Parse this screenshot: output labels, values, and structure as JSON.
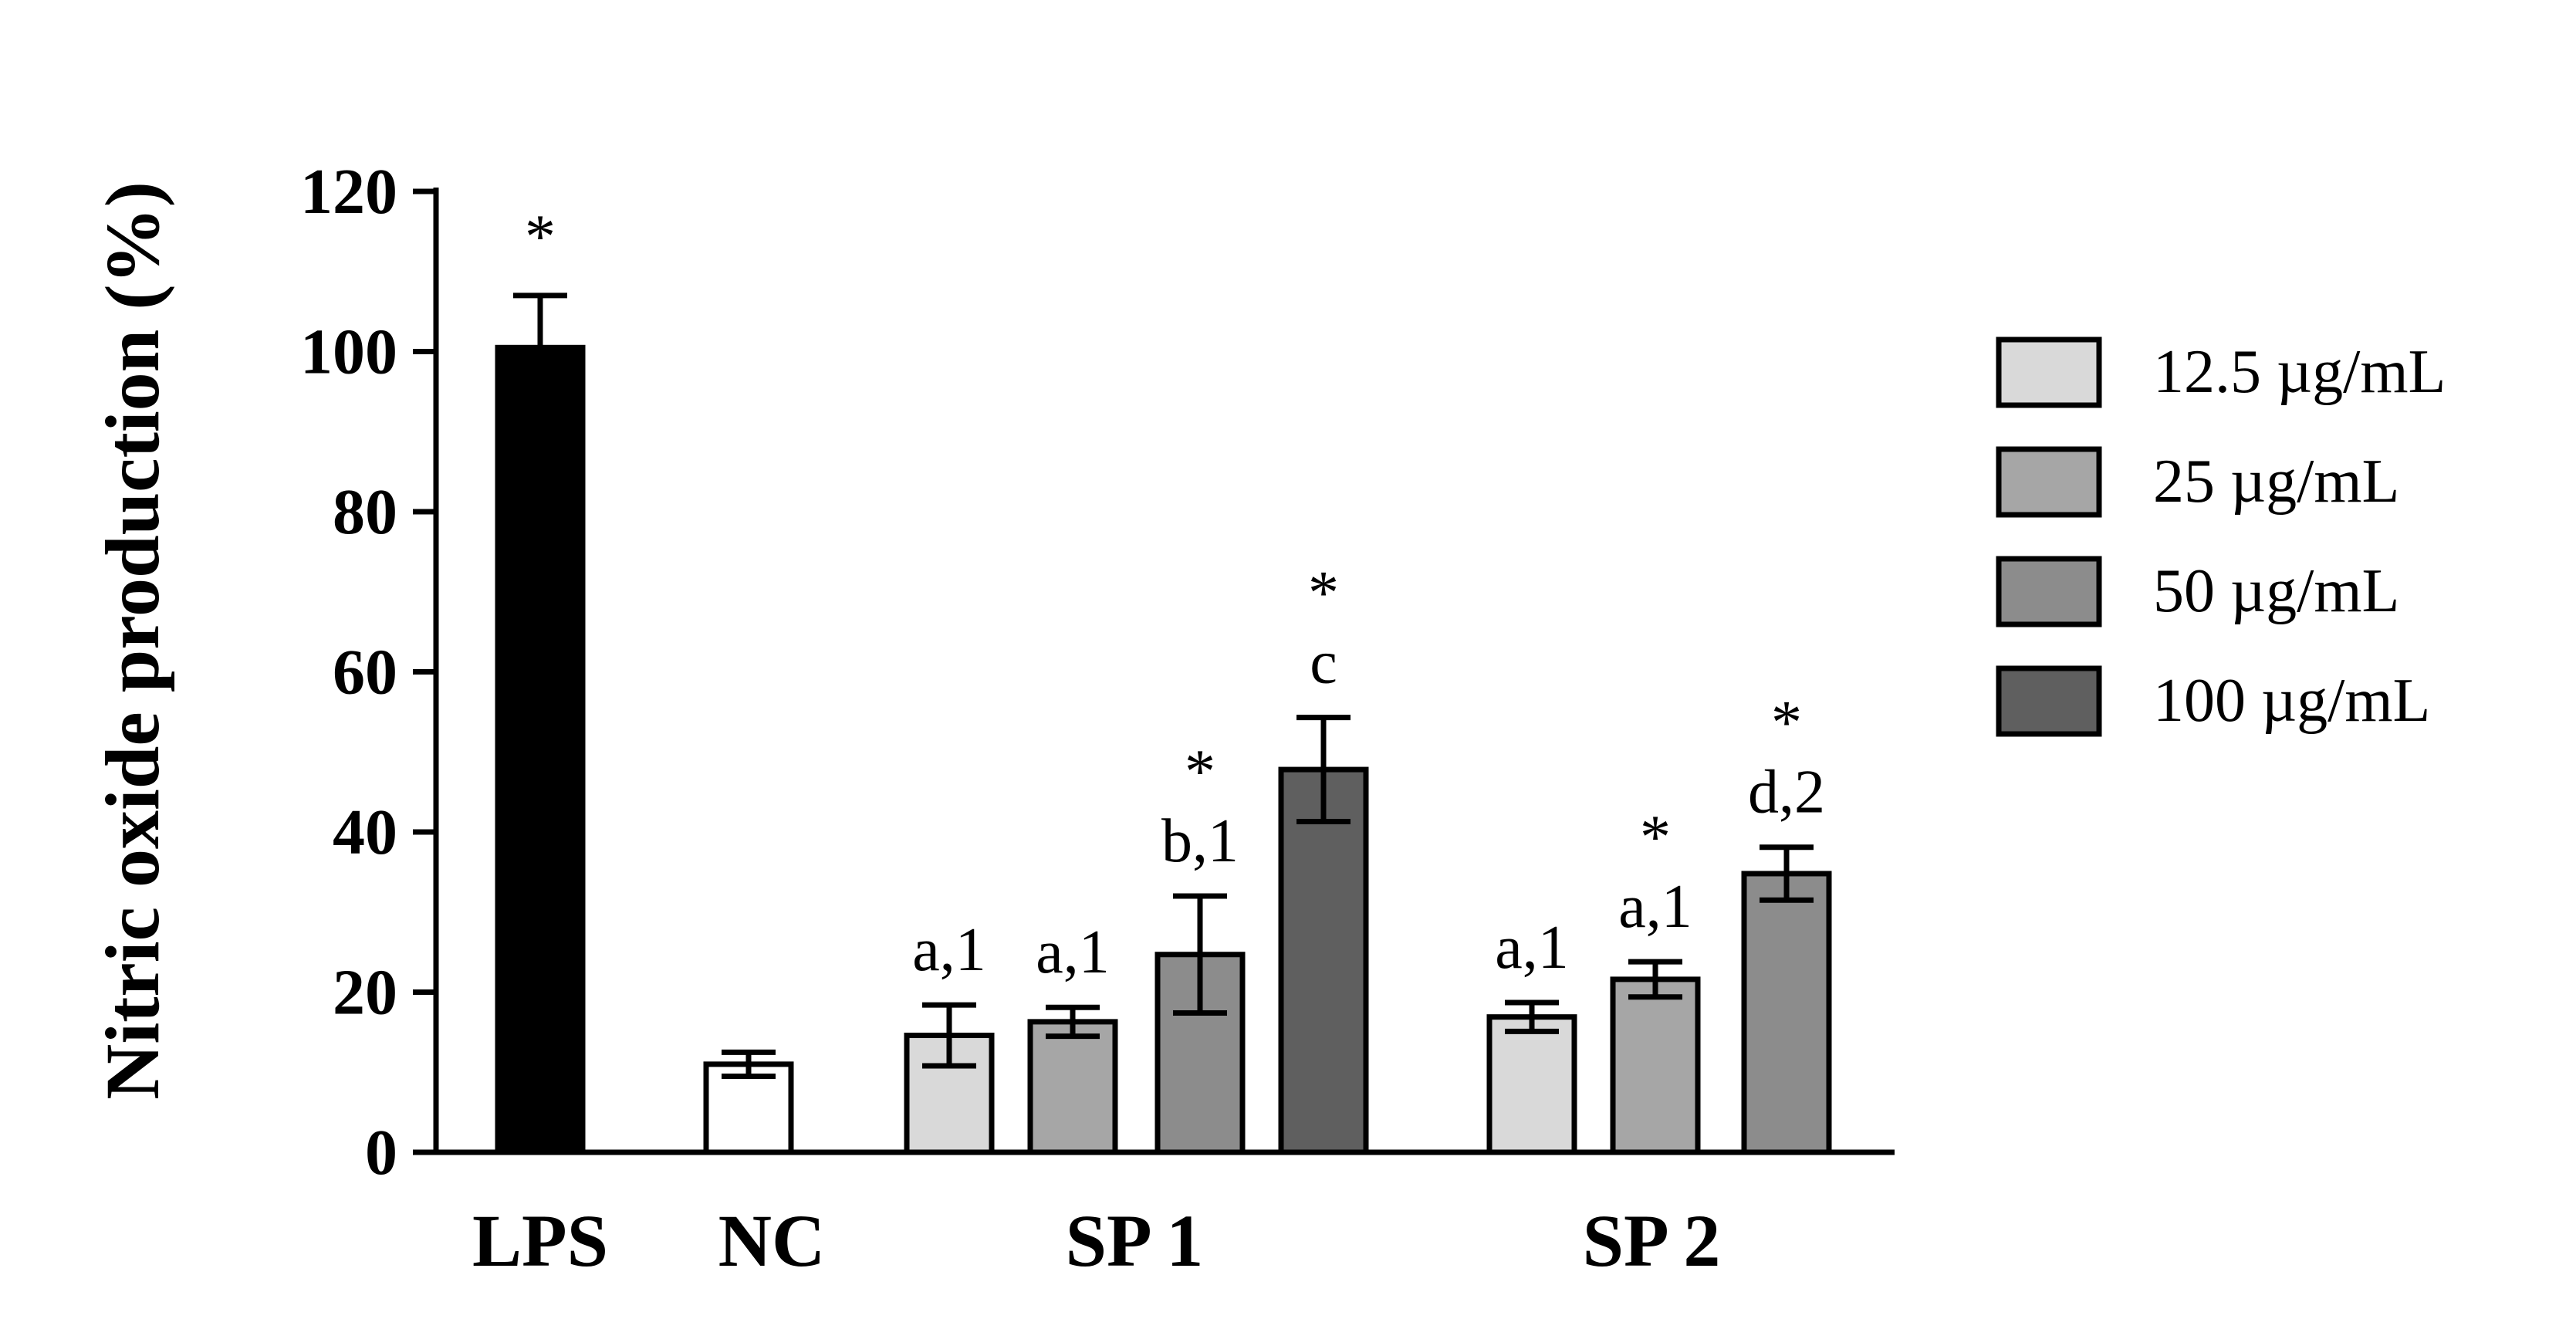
{
  "chart_data": {
    "type": "bar",
    "title": "",
    "ylabel": "Nitric oxide production (%)",
    "xlabel": "",
    "ylim": [
      0,
      120
    ],
    "yticks": [
      "0",
      "20",
      "40",
      "60",
      "80",
      "100",
      "120"
    ],
    "grid": false,
    "legend_position": "right",
    "groups": [
      {
        "label": "LPS",
        "bars": [
          {
            "series": "control",
            "value": 100.5,
            "error": 6.5,
            "color": "#000000",
            "annotation": "",
            "star": true
          }
        ]
      },
      {
        "label": "NC",
        "bars": [
          {
            "series": "control",
            "value": 11,
            "error": 1.5,
            "color": "#ffffff",
            "annotation": "",
            "star": false
          }
        ]
      },
      {
        "label": "SP 1",
        "bars": [
          {
            "series": "12.5 µg/mL",
            "value": 14.6,
            "error": 3.8,
            "color": "#d9d9d9",
            "annotation": "a,1",
            "star": false
          },
          {
            "series": "25 µg/mL",
            "value": 16.3,
            "error": 1.8,
            "color": "#a6a6a6",
            "annotation": "a,1",
            "star": false
          },
          {
            "series": "50 µg/mL",
            "value": 24.7,
            "error": 7.3,
            "color": "#8c8c8c",
            "annotation": "b,1",
            "star": true
          },
          {
            "series": "100 µg/mL",
            "value": 47.8,
            "error": 6.5,
            "color": "#5f5f5f",
            "annotation": "c",
            "star": true
          }
        ]
      },
      {
        "label": "SP 2",
        "bars": [
          {
            "series": "12.5 µg/mL",
            "value": 16.9,
            "error": 1.8,
            "color": "#d9d9d9",
            "annotation": "a,1",
            "star": false
          },
          {
            "series": "25 µg/mL",
            "value": 21.6,
            "error": 2.2,
            "color": "#a6a6a6",
            "annotation": "a,1",
            "star": true
          },
          {
            "series": "50 µg/mL",
            "value": 34.8,
            "error": 3.3,
            "color": "#8c8c8c",
            "annotation": "d,2",
            "star": true
          }
        ]
      }
    ],
    "legend": [
      {
        "label": "12.5 µg/mL",
        "color": "#d9d9d9"
      },
      {
        "label": "25 µg/mL",
        "color": "#a6a6a6"
      },
      {
        "label": "50 µg/mL",
        "color": "#8c8c8c"
      },
      {
        "label": "100 µg/mL",
        "color": "#5f5f5f"
      }
    ],
    "star_symbol": "*"
  }
}
